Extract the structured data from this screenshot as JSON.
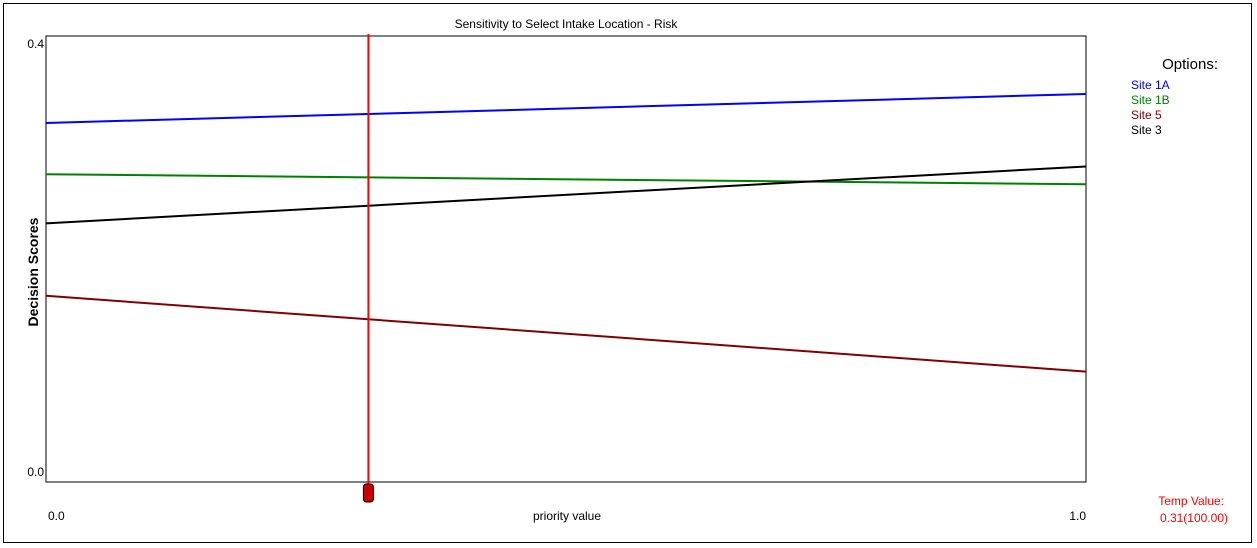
{
  "chart_data": {
    "type": "line",
    "title": "Sensitivity to Select Intake Location - Risk",
    "xlabel": "priority value",
    "ylabel": "Decision Scores",
    "xlim": [
      0.0,
      1.0
    ],
    "ylim": [
      0.0,
      0.4
    ],
    "x_tick_labels": [
      "0.0",
      "1.0"
    ],
    "y_tick_labels": [
      "0.0",
      "0.4"
    ],
    "x": [
      0.0,
      1.0
    ],
    "series": [
      {
        "name": "Site 1A",
        "color": "#0000ff",
        "values": [
          0.322,
          0.348
        ]
      },
      {
        "name": "Site 1B",
        "color": "#008000",
        "values": [
          0.276,
          0.267
        ]
      },
      {
        "name": "Site 5",
        "color": "#800000",
        "values": [
          0.167,
          0.099
        ]
      },
      {
        "name": "Site 3",
        "color": "#000000",
        "values": [
          0.232,
          0.283
        ]
      }
    ],
    "legend_title": "Options:",
    "legend_position": "right",
    "marker": {
      "x": 0.31,
      "color": "#ff0000"
    },
    "grid": false
  },
  "temp_value": {
    "label": "Temp Value:",
    "value": "0.31(100.00)",
    "color": "#ff0000"
  }
}
